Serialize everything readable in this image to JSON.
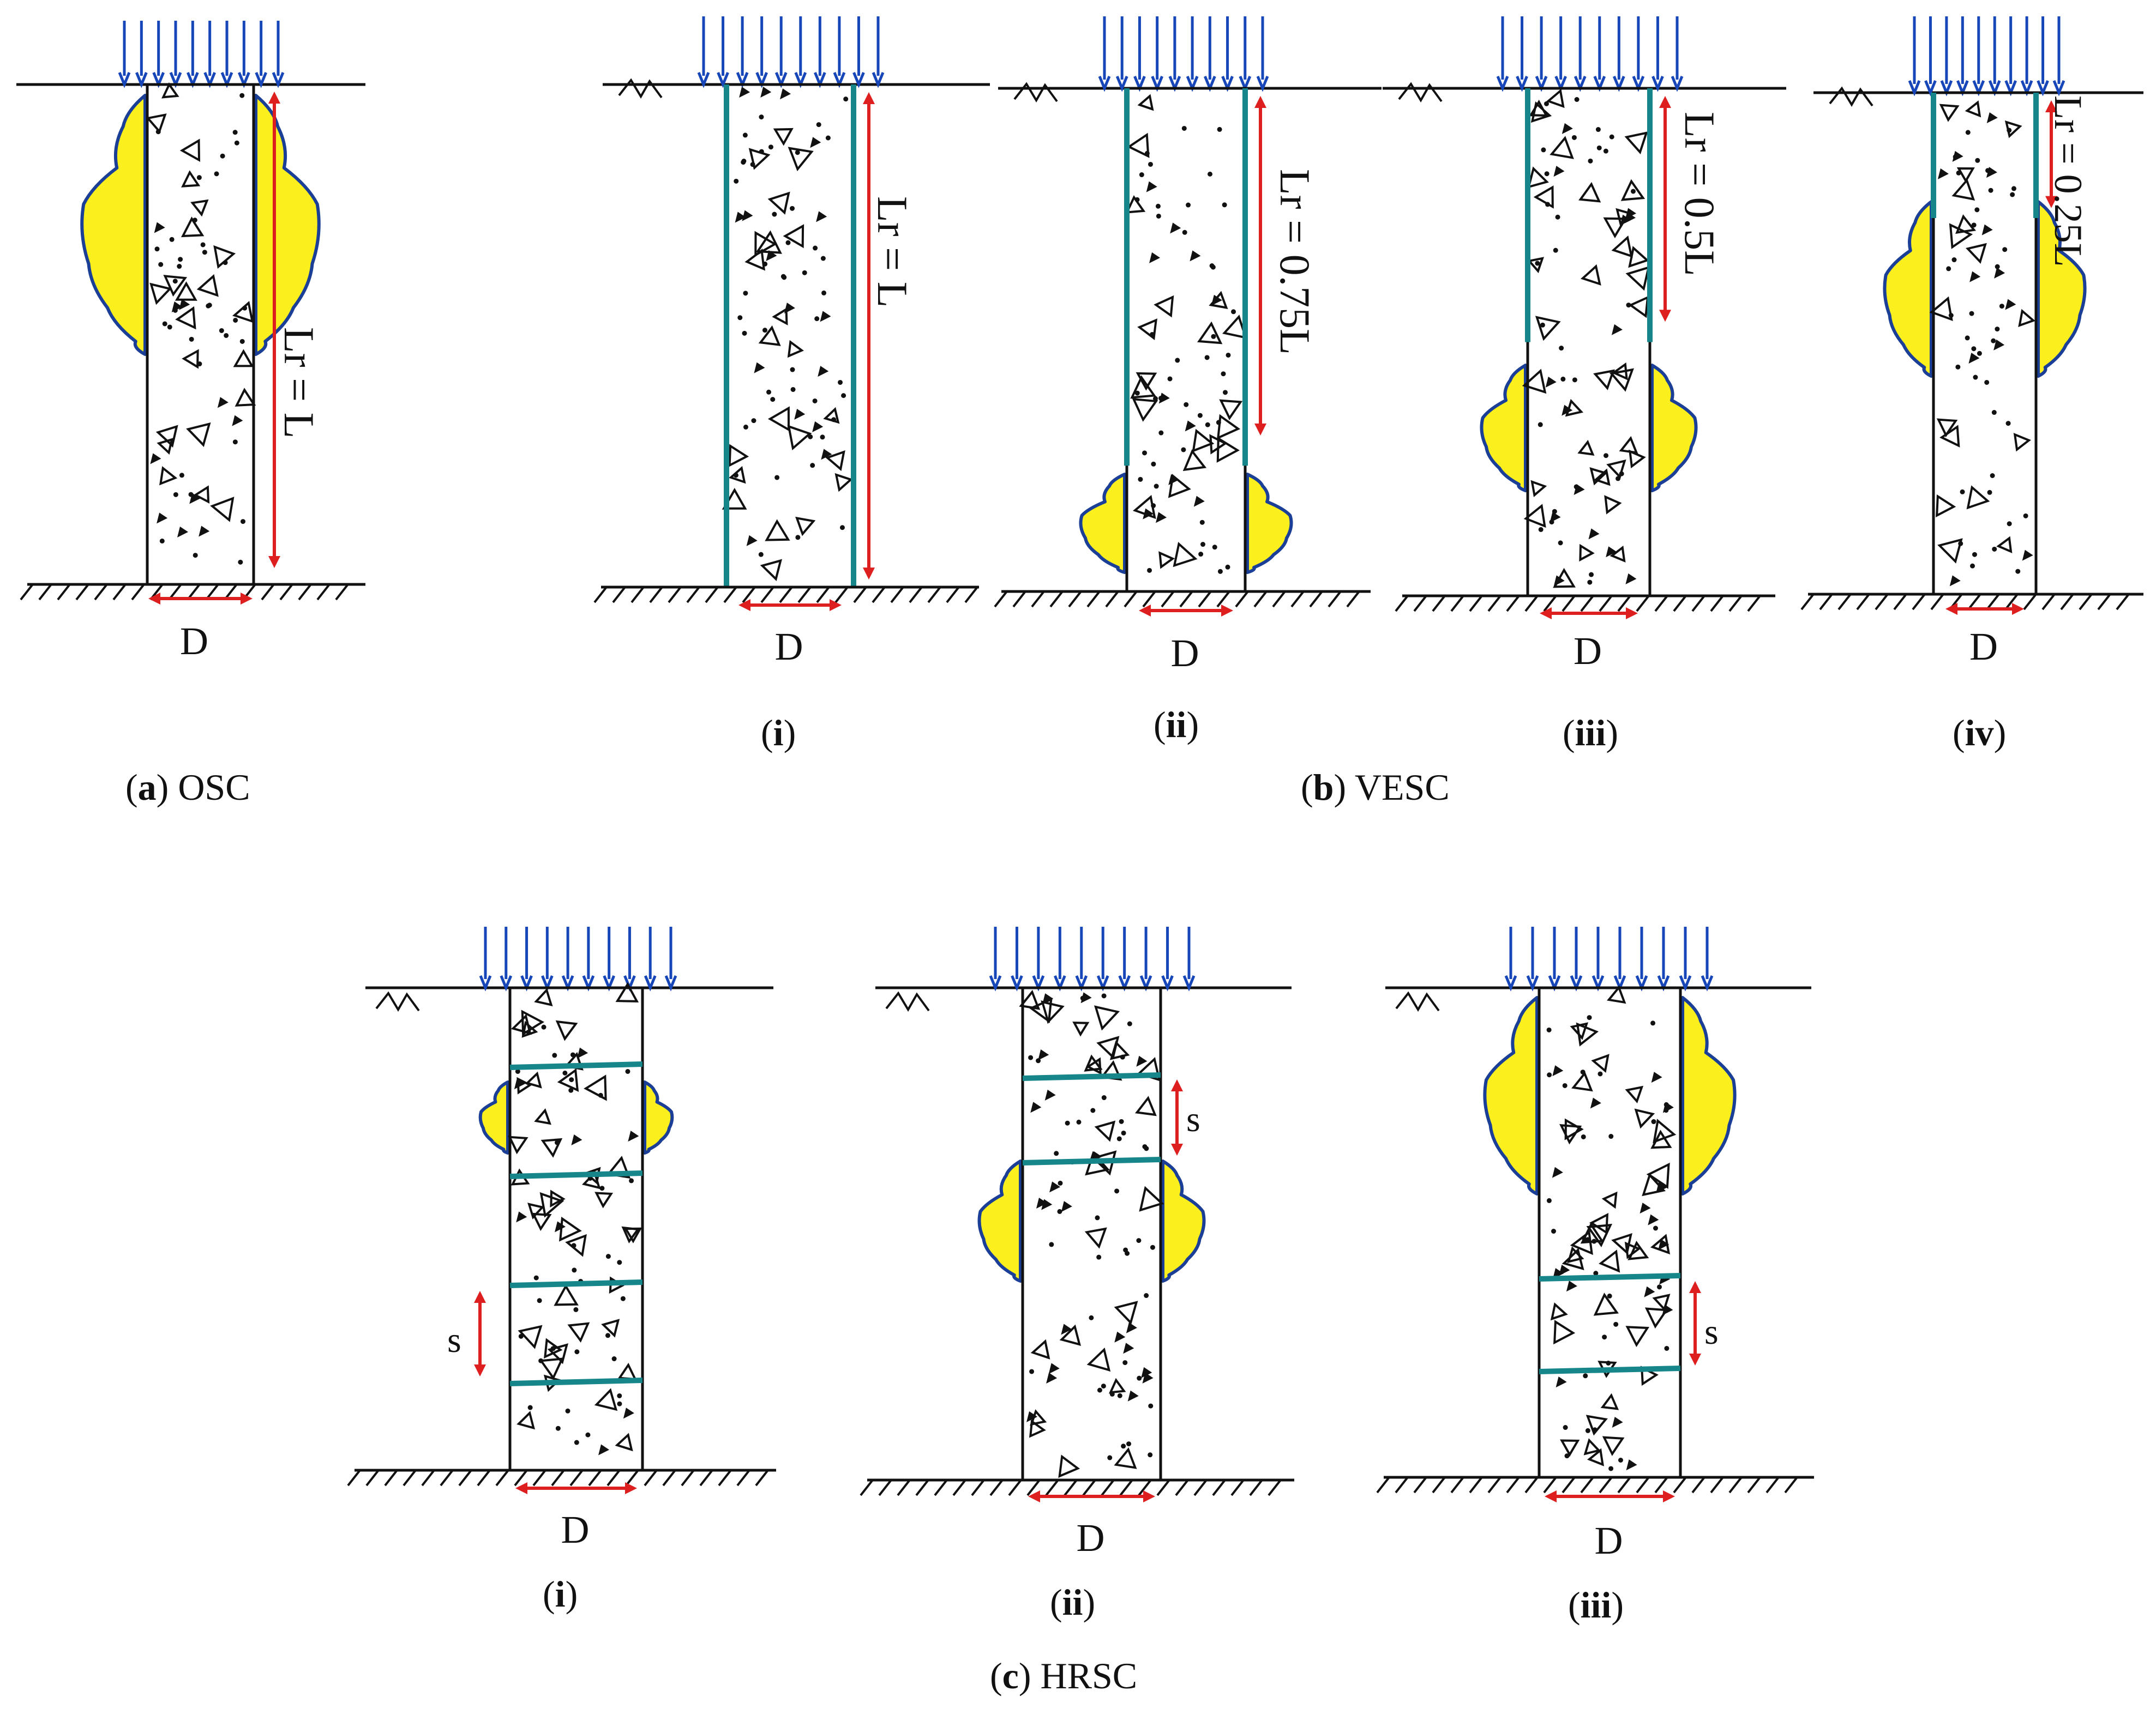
{
  "colors": {
    "load_arrow": "#1646b8",
    "wrap": "#17868a",
    "bulge_fill": "#fbf01e",
    "bulge_outline": "#1b3f96",
    "dimension": "#dd1f1f",
    "line": "#111111"
  },
  "panels": {
    "a": {
      "dim_d": "D",
      "dim_lr": "Lr = L",
      "caption": {
        "letter": "a",
        "name": "OSC"
      }
    },
    "b": {
      "caption": {
        "letter": "b",
        "name": "VESC"
      },
      "sub": [
        {
          "label": "i",
          "dim_d": "D",
          "dim_lr": "Lr = L"
        },
        {
          "label": "ii",
          "dim_d": "D",
          "dim_lr": "Lr = 0.75L"
        },
        {
          "label": "iii",
          "dim_d": "D",
          "dim_lr": "Lr = 0.5L"
        },
        {
          "label": "iv",
          "dim_d": "D",
          "dim_lr": "Lr = 0.25L"
        }
      ]
    },
    "c": {
      "caption": {
        "letter": "c",
        "name": "HRSC"
      },
      "sub": [
        {
          "label": "i",
          "dim_d": "D",
          "dim_s": "s"
        },
        {
          "label": "ii",
          "dim_d": "D",
          "dim_s": "s"
        },
        {
          "label": "iii",
          "dim_d": "D",
          "dim_s": "s"
        }
      ]
    }
  }
}
